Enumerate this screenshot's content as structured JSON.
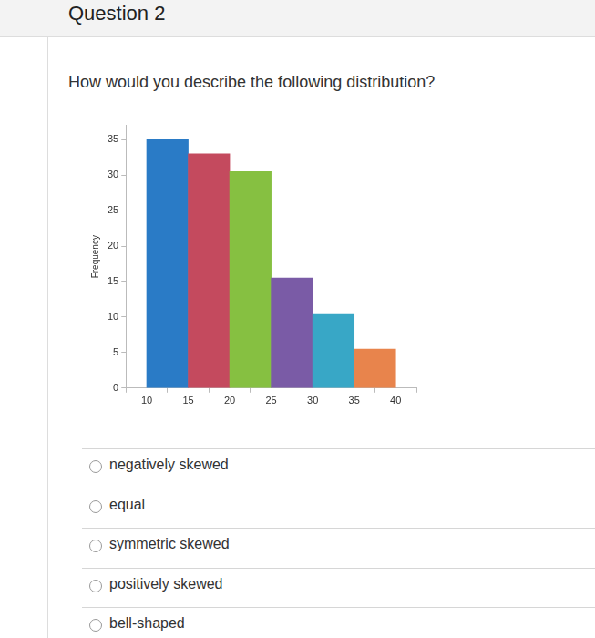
{
  "header": {
    "title": "Question 2"
  },
  "question": "How would you describe the following distribution?",
  "chart_data": {
    "type": "histogram",
    "y_label": "Frequency",
    "bins": [
      10,
      15,
      20,
      25,
      30,
      35,
      40
    ],
    "values": [
      35,
      33,
      30.5,
      15.5,
      10.5,
      5.5
    ],
    "colors": [
      "#2a7bc6",
      "#c44a5e",
      "#86c041",
      "#7a5ba6",
      "#38a7c6",
      "#e8844c"
    ],
    "xlim": [
      7.5,
      42.5
    ],
    "ylim": [
      0,
      37
    ],
    "xticks": [
      10,
      15,
      20,
      25,
      30,
      35,
      40
    ],
    "yticks": [
      0,
      5,
      10,
      15,
      20,
      25,
      30,
      35
    ],
    "grid": false
  },
  "options": [
    "negatively skewed",
    "equal",
    "symmetric skewed",
    "positively skewed",
    "bell-shaped"
  ]
}
